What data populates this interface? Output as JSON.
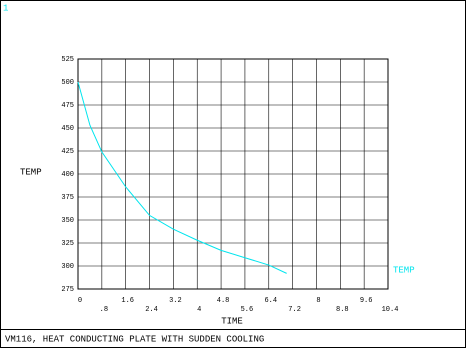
{
  "plot_number": "1",
  "chart_data": {
    "type": "line",
    "title": "VM116, HEAT CONDUCTING PLATE WITH SUDDEN COOLING",
    "xlabel": "TIME",
    "ylabel": "TEMP",
    "x": [
      0,
      0.4,
      0.8,
      1.6,
      2.4,
      3.2,
      4,
      4.8,
      5.6,
      6.4,
      7
    ],
    "series": [
      {
        "name": "TEMP",
        "color": "#00e5ee",
        "values": [
          500,
          453,
          424,
          386,
          355,
          340,
          328,
          317,
          309,
          301,
          292
        ]
      }
    ],
    "xlim": [
      0,
      10.4
    ],
    "ylim": [
      275,
      525
    ],
    "xticks": [
      0,
      {
        "value": 0.8,
        "label": ".8"
      },
      1.6,
      2.4,
      3.2,
      4,
      4.8,
      5.6,
      6.4,
      7.2,
      8,
      8.8,
      9.6,
      10.4
    ],
    "yticks": [
      275,
      300,
      325,
      350,
      375,
      400,
      425,
      450,
      475,
      500,
      525
    ],
    "grid": true
  }
}
